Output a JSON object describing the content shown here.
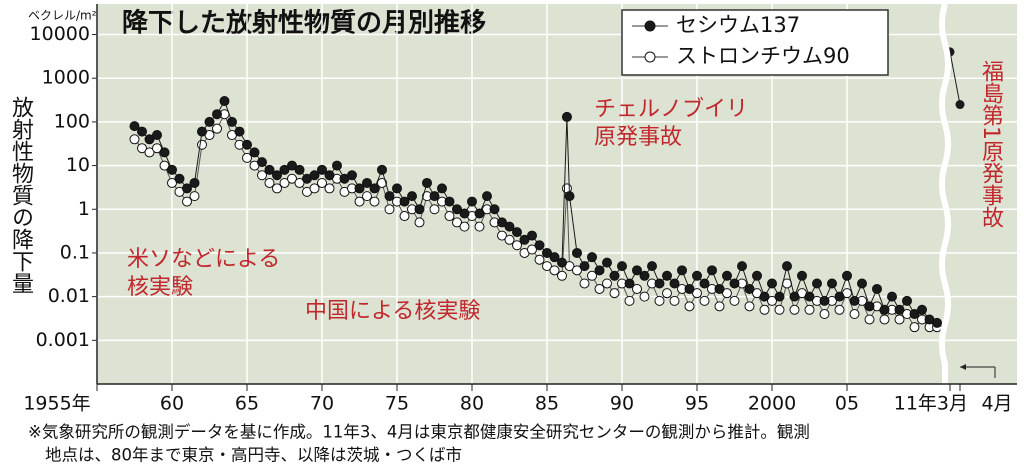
{
  "chart_data": {
    "type": "line",
    "title": "降下した放射性物質の月別推移",
    "unit": "ベクレル/m²",
    "y_label": "放射性物質の降下量",
    "log_scale": true,
    "grid": true,
    "legend": "top-right",
    "xlim": [
      1955,
      2011.2
    ],
    "ylim": [
      0.0001,
      50000
    ],
    "yticks": [
      10000,
      1000,
      100,
      10,
      1,
      0.1,
      0.01,
      0.001
    ],
    "xticks": [
      {
        "value": 1955,
        "label": "1955年"
      },
      {
        "value": 1960,
        "label": "60"
      },
      {
        "value": 1965,
        "label": "65"
      },
      {
        "value": 1970,
        "label": "70"
      },
      {
        "value": 1975,
        "label": "75"
      },
      {
        "value": 1980,
        "label": "80"
      },
      {
        "value": 1985,
        "label": "85"
      },
      {
        "value": 1990,
        "label": "90"
      },
      {
        "value": 1995,
        "label": "95"
      },
      2000,
      {
        "value": 2005,
        "label": "05"
      }
    ],
    "x": [
      1957.5,
      1958,
      1958.5,
      1959,
      1959.5,
      1960,
      1960.5,
      1961,
      1961.5,
      1962,
      1962.5,
      1963,
      1963.5,
      1964,
      1964.5,
      1965,
      1965.5,
      1966,
      1966.5,
      1967,
      1967.5,
      1968,
      1968.5,
      1969,
      1969.5,
      1970,
      1970.5,
      1971,
      1971.5,
      1972,
      1972.5,
      1973,
      1973.5,
      1974,
      1974.5,
      1975,
      1975.5,
      1976,
      1976.5,
      1977,
      1977.5,
      1978,
      1978.5,
      1979,
      1979.5,
      1980,
      1980.5,
      1981,
      1981.5,
      1982,
      1982.5,
      1983,
      1983.5,
      1984,
      1984.5,
      1985,
      1985.5,
      1986,
      1986.33,
      1986.5,
      1987,
      1987.5,
      1988,
      1988.5,
      1989,
      1989.5,
      1990,
      1990.5,
      1991,
      1991.5,
      1992,
      1992.5,
      1993,
      1993.5,
      1994,
      1994.5,
      1995,
      1995.5,
      1996,
      1996.5,
      1997,
      1997.5,
      1998,
      1998.5,
      1999,
      1999.5,
      2000,
      2000.5,
      2001,
      2001.5,
      2002,
      2002.5,
      2003,
      2003.5,
      2004,
      2004.5,
      2005,
      2005.5,
      2006,
      2006.5,
      2007,
      2007.5,
      2008,
      2008.5,
      2009,
      2009.5,
      2010,
      2010.5,
      2011
    ],
    "series": [
      {
        "name": "セシウム137",
        "color": "#1a1a1a",
        "values": [
          80,
          60,
          40,
          50,
          20,
          8,
          5,
          3,
          4,
          60,
          100,
          150,
          300,
          100,
          60,
          30,
          20,
          12,
          8,
          6,
          8,
          10,
          8,
          5,
          6,
          8,
          6,
          10,
          5,
          6,
          3,
          4,
          3,
          8,
          2,
          3,
          1.5,
          2,
          1,
          4,
          2,
          3,
          1.5,
          1,
          0.8,
          1.5,
          0.8,
          2,
          1,
          0.5,
          0.4,
          0.3,
          0.2,
          0.25,
          0.15,
          0.1,
          0.08,
          0.06,
          130,
          2,
          0.1,
          0.05,
          0.08,
          0.04,
          0.06,
          0.03,
          0.05,
          0.02,
          0.04,
          0.03,
          0.05,
          0.02,
          0.03,
          0.02,
          0.04,
          0.015,
          0.03,
          0.02,
          0.04,
          0.015,
          0.03,
          0.02,
          0.05,
          0.015,
          0.03,
          0.01,
          0.02,
          0.01,
          0.05,
          0.01,
          0.03,
          0.01,
          0.02,
          0.008,
          0.02,
          0.01,
          0.03,
          0.008,
          0.02,
          0.006,
          0.015,
          0.005,
          0.01,
          0.005,
          0.008,
          0.004,
          0.005,
          0.003,
          0.0025
        ]
      },
      {
        "name": "ストロンチウム90",
        "color": "#ffffff",
        "values": [
          40,
          25,
          20,
          25,
          10,
          4,
          2.5,
          1.5,
          2,
          30,
          50,
          70,
          150,
          50,
          30,
          15,
          10,
          6,
          4,
          3,
          4,
          5,
          4,
          2.5,
          3,
          4,
          3,
          5,
          2.5,
          3,
          1.5,
          2,
          1.5,
          4,
          1,
          1.5,
          0.7,
          1,
          0.5,
          2,
          1,
          1.5,
          0.7,
          0.5,
          0.4,
          0.7,
          0.4,
          1,
          0.5,
          0.25,
          0.2,
          0.15,
          0.1,
          0.12,
          0.07,
          0.05,
          0.04,
          0.03,
          3,
          0.05,
          0.04,
          0.02,
          0.03,
          0.015,
          0.02,
          0.012,
          0.02,
          0.008,
          0.015,
          0.01,
          0.02,
          0.008,
          0.012,
          0.008,
          0.015,
          0.006,
          0.012,
          0.008,
          0.015,
          0.006,
          0.012,
          0.008,
          0.02,
          0.006,
          0.012,
          0.005,
          0.008,
          0.005,
          0.02,
          0.005,
          0.012,
          0.005,
          0.008,
          0.004,
          0.008,
          0.005,
          0.012,
          0.004,
          0.008,
          0.003,
          0.006,
          0.003,
          0.005,
          0.003,
          0.004,
          0.002,
          0.003,
          0.002,
          0.002
        ]
      }
    ],
    "inset": {
      "categories": [
        "11年3月",
        "4月"
      ],
      "values": [
        4000,
        250
      ]
    },
    "annotations": {
      "chernobyl": [
        "チェルノブイリ",
        "原発事故"
      ],
      "us_ussr": [
        "米ソなどによる",
        "核実験"
      ],
      "china": "中国による核実験",
      "fukushima": "福島第1原発事故"
    },
    "footnote": [
      "※気象研究所の観測データを基に作成。11年3、4月は東京都健康安全研究センターの観測から推計。観測",
      "地点は、80年まで東京・高円寺、以降は茨城・つくば市"
    ]
  }
}
